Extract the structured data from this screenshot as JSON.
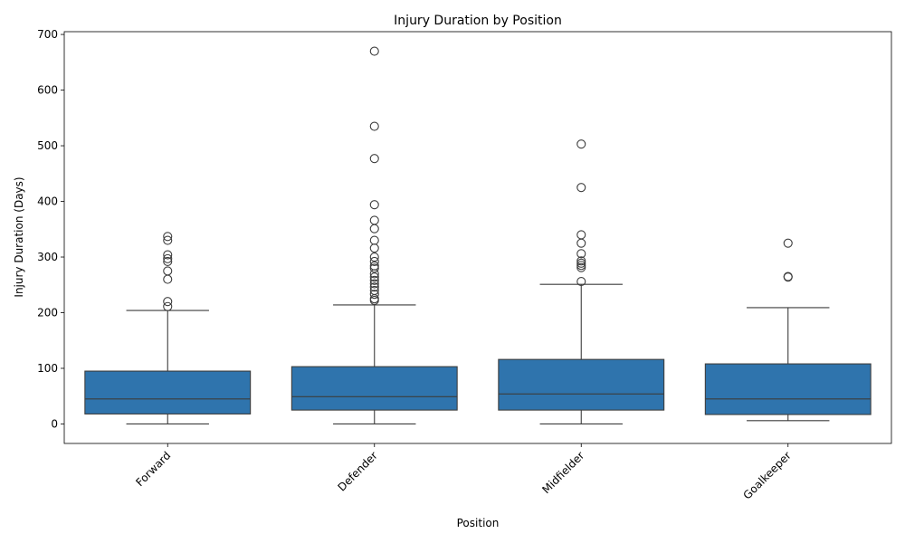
{
  "chart_data": {
    "type": "box",
    "title": "Injury Duration by Position",
    "xlabel": "Position",
    "ylabel": "Injury Duration (Days)",
    "ylim": [
      -35,
      705
    ],
    "yticks": [
      0,
      100,
      200,
      300,
      400,
      500,
      600,
      700
    ],
    "categories": [
      "Forward",
      "Defender",
      "Midfielder",
      "Goalkeeper"
    ],
    "box_color": "#2f74ad",
    "line_color": "#3d3d3d",
    "boxes": [
      {
        "category": "Forward",
        "whisker_low": 0,
        "q1": 18,
        "median": 45,
        "q3": 95,
        "whisker_high": 204,
        "outliers": [
          211,
          220,
          260,
          275,
          292,
          297,
          304,
          330,
          337
        ]
      },
      {
        "category": "Defender",
        "whisker_low": 0,
        "q1": 25,
        "median": 49,
        "q3": 103,
        "whisker_high": 214,
        "outliers": [
          222,
          225,
          233,
          240,
          246,
          252,
          258,
          264,
          270,
          280,
          284,
          292,
          300,
          316,
          330,
          351,
          366,
          394,
          477,
          535,
          670
        ]
      },
      {
        "category": "Midfielder",
        "whisker_low": 0,
        "q1": 25,
        "median": 54,
        "q3": 116,
        "whisker_high": 251,
        "outliers": [
          256,
          281,
          285,
          289,
          293,
          306,
          325,
          340,
          425,
          503
        ]
      },
      {
        "category": "Goalkeeper",
        "whisker_low": 6,
        "q1": 17,
        "median": 45,
        "q3": 108,
        "whisker_high": 209,
        "outliers": [
          264,
          265,
          325
        ]
      }
    ]
  }
}
